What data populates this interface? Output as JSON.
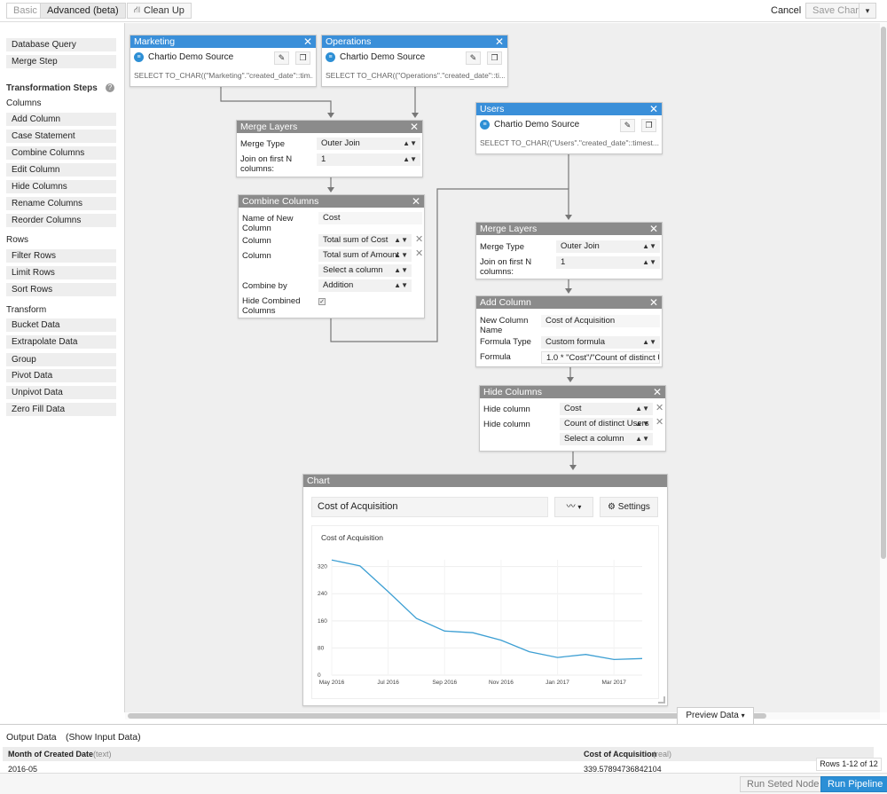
{
  "topbar": {
    "basic": "Basic",
    "advanced": "Advanced (beta)",
    "cleanup": "Clean Up",
    "cancel": "Cancel",
    "save": "Save Chart",
    "save_caret": "▾"
  },
  "sidebar": {
    "database_query": "Database Query",
    "merge_step": "Merge Step",
    "transformation_steps": "Transformation Steps",
    "help": "?",
    "columns_title": "Columns",
    "columns": [
      "Add Column",
      "Case Statement",
      "Combine Columns",
      "Edit Column",
      "Hide Columns",
      "Rename Columns",
      "Reorder Columns"
    ],
    "rows_title": "Rows",
    "rows": [
      "Filter Rows",
      "Limit Rows",
      "Sort Rows"
    ],
    "transform_title": "Transform",
    "transform": [
      "Bucket Data",
      "Extrapolate Data",
      "Group",
      "Pivot Data",
      "Unpivot Data",
      "Zero Fill Data"
    ]
  },
  "nodes": {
    "marketing": {
      "title": "Marketing",
      "source": "Chartio Demo Source",
      "sql": "SELECT TO_CHAR((\"Marketing\".\"created_date\"::tim..."
    },
    "operations": {
      "title": "Operations",
      "source": "Chartio Demo Source",
      "sql": "SELECT TO_CHAR((\"Operations\".\"created_date\"::ti..."
    },
    "users": {
      "title": "Users",
      "source": "Chartio Demo Source",
      "sql": "SELECT TO_CHAR((\"Users\".\"created_date\"::timest..."
    },
    "merge1": {
      "title": "Merge Layers",
      "merge_type_label": "Merge Type",
      "merge_type": "Outer Join",
      "join_label": "Join on first N columns:",
      "join_value": "1"
    },
    "merge2": {
      "title": "Merge Layers",
      "merge_type_label": "Merge Type",
      "merge_type": "Outer Join",
      "join_label": "Join on first N columns:",
      "join_value": "1"
    },
    "combine": {
      "title": "Combine Columns",
      "name_label": "Name of New Column",
      "name_value": "Cost",
      "column_label": "Column",
      "column1": "Total sum of Cost",
      "column2": "Total sum of Amount",
      "column3": "Select a column",
      "combine_label": "Combine by",
      "combine_value": "Addition",
      "hide_label": "Hide Combined Columns"
    },
    "addcol": {
      "title": "Add Column",
      "name_label": "New Column Name",
      "name_value": "Cost of Acquisition",
      "type_label": "Formula Type",
      "type_value": "Custom formula",
      "formula_label": "Formula",
      "formula_value": "1.0 * \"Cost\"/\"Count of distinct U"
    },
    "hidecols": {
      "title": "Hide Columns",
      "label": "Hide column",
      "col1": "Cost",
      "col2": "Count of distinct Users",
      "col3": "Select a column"
    },
    "chart": {
      "title": "Chart",
      "chart_title": "Cost of Acquisition",
      "settings": "Settings"
    }
  },
  "chart_data": {
    "type": "line",
    "title": "Cost of Acquisition",
    "x": [
      "May 2016",
      "Jun 2016",
      "Jul 2016",
      "Aug 2016",
      "Sep 2016",
      "Oct 2016",
      "Nov 2016",
      "Dec 2016",
      "Jan 2017",
      "Feb 2017",
      "Mar 2017",
      "Apr 2017"
    ],
    "xticks": [
      "May 2016",
      "Jul 2016",
      "Sep 2016",
      "Nov 2016",
      "Jan 2017",
      "Mar 2017"
    ],
    "series": [
      {
        "values": [
          339.6,
          322,
          246,
          167,
          130,
          125,
          103,
          69,
          52,
          61,
          46,
          49
        ]
      }
    ],
    "yticks": [
      0,
      80,
      160,
      240,
      320
    ],
    "ylim": [
      0,
      340
    ],
    "grid": true,
    "color": "#3d9fd3"
  },
  "preview": {
    "label": "Preview Data",
    "caret": "▾"
  },
  "output": {
    "title": "Output Data",
    "show_input": "(Show Input Data)",
    "col1": "Month of Created Date",
    "col1_type": "(text)",
    "col2": "Cost of Acquisition",
    "col2_type": "(real)",
    "row1_c1": "2016-05",
    "row1_c2": "339.57894736842104",
    "rows_info": "Rows 1-12 of 12",
    "run_selected": "Run Seted Node",
    "run_pipeline": "Run Pipeline"
  }
}
